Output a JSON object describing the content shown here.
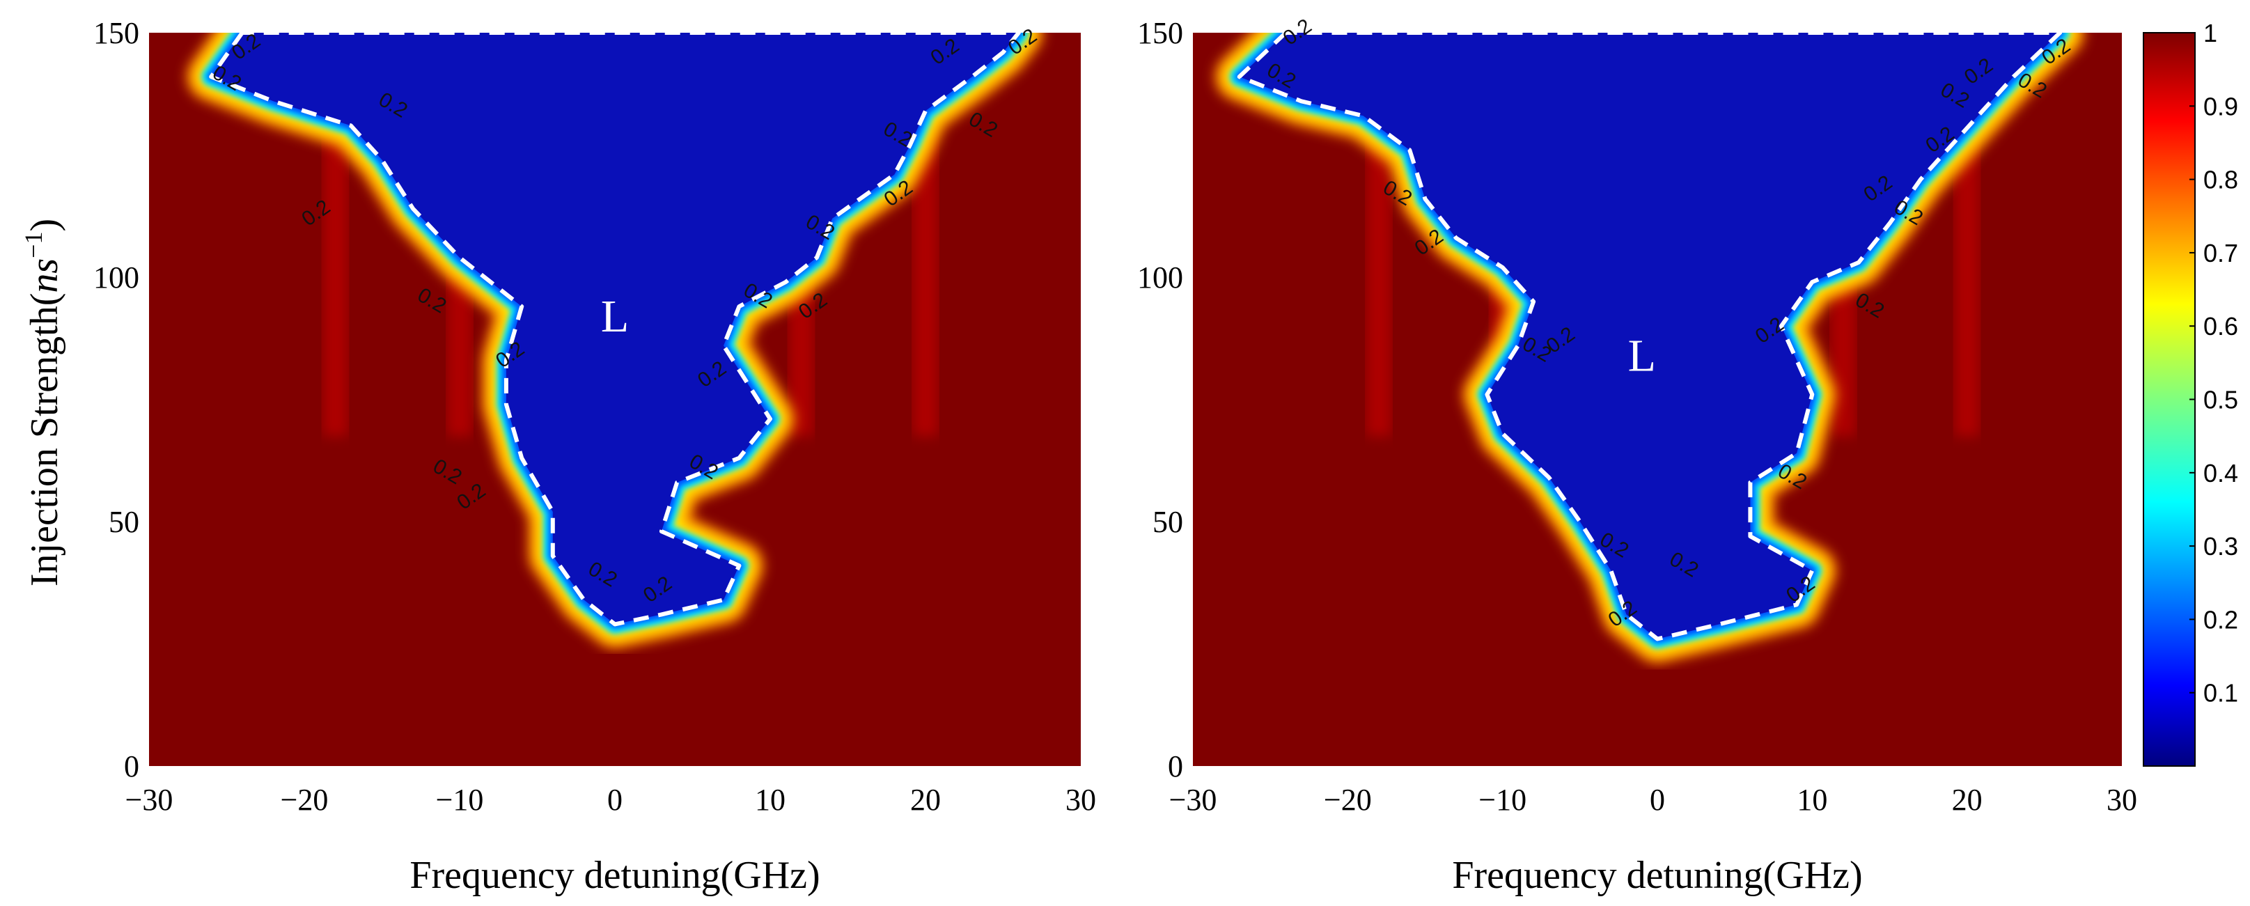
{
  "chart_data": [
    {
      "type": "heatmap",
      "panel": "left",
      "xlabel": "Frequency detuning(GHz)",
      "ylabel": "Injection Strength(",
      "ylabel_unit": "ns",
      "ylabel_exp": "−1",
      "ylabel_close": ")",
      "xlim": [
        -30,
        30
      ],
      "ylim": [
        0,
        150
      ],
      "x_ticks": [
        "-30",
        "-20",
        "-10",
        "0",
        "10",
        "20",
        "30"
      ],
      "y_ticks": [
        "0",
        "50",
        "100",
        "150"
      ],
      "region_label": "L",
      "region_label_pos": [
        0,
        92
      ],
      "contour_level": "0.2",
      "contour_labels": [
        {
          "x": -25.2,
          "y": 139.5
        },
        {
          "x": -23.5,
          "y": 146
        },
        {
          "x": -14.5,
          "y": 134
        },
        {
          "x": -19,
          "y": 112
        },
        {
          "x": -12,
          "y": 94
        },
        {
          "x": -6.5,
          "y": 83
        },
        {
          "x": -11,
          "y": 59
        },
        {
          "x": -9,
          "y": 54
        },
        {
          "x": -1,
          "y": 38
        },
        {
          "x": 3,
          "y": 35
        },
        {
          "x": 5.5,
          "y": 60
        },
        {
          "x": 6.5,
          "y": 79
        },
        {
          "x": 9,
          "y": 95
        },
        {
          "x": 13,
          "y": 93
        },
        {
          "x": 13,
          "y": 109
        },
        {
          "x": 18.5,
          "y": 116
        },
        {
          "x": 18,
          "y": 128
        },
        {
          "x": 21.5,
          "y": 145
        },
        {
          "x": 23.5,
          "y": 130
        },
        {
          "x": 26.5,
          "y": 147
        }
      ],
      "boundary_left": [
        [
          -24,
          150
        ],
        [
          -26,
          141
        ],
        [
          -22,
          136
        ],
        [
          -17,
          131
        ],
        [
          -15,
          124
        ],
        [
          -13,
          114
        ],
        [
          -10,
          104
        ],
        [
          -6,
          94
        ],
        [
          -7,
          83
        ],
        [
          -7,
          74
        ],
        [
          -6,
          63
        ],
        [
          -4,
          52
        ],
        [
          -4,
          43
        ],
        [
          -2,
          34
        ],
        [
          0,
          29
        ]
      ],
      "boundary_right": [
        [
          0,
          29
        ],
        [
          3,
          31
        ],
        [
          7,
          34
        ],
        [
          8,
          41
        ],
        [
          3,
          48
        ],
        [
          4,
          58
        ],
        [
          8,
          63
        ],
        [
          10,
          71
        ],
        [
          7,
          86
        ],
        [
          8,
          94
        ],
        [
          11,
          99
        ],
        [
          13,
          104
        ],
        [
          14,
          112
        ],
        [
          18,
          121
        ],
        [
          19,
          127
        ],
        [
          20,
          134
        ],
        [
          23,
          141
        ],
        [
          25,
          146
        ],
        [
          26,
          150
        ]
      ],
      "fringe_bands": [
        [
          -18,
          150
        ],
        [
          -10,
          150
        ],
        [
          -3,
          150
        ],
        [
          4,
          150
        ],
        [
          12,
          150
        ],
        [
          20,
          150
        ]
      ]
    },
    {
      "type": "heatmap",
      "panel": "right",
      "xlabel": "Frequency detuning(GHz)",
      "xlim": [
        -30,
        30
      ],
      "ylim": [
        0,
        150
      ],
      "x_ticks": [
        "-30",
        "-20",
        "-10",
        "0",
        "10",
        "20",
        "30"
      ],
      "y_ticks": [
        "0",
        "50",
        "100",
        "150"
      ],
      "region_label": "L",
      "region_label_pos": [
        -1,
        84
      ],
      "contour_level": "0.2",
      "contour_labels": [
        {
          "x": -24.5,
          "y": 140
        },
        {
          "x": -23,
          "y": 149
        },
        {
          "x": -17,
          "y": 116
        },
        {
          "x": -14.5,
          "y": 106
        },
        {
          "x": -8,
          "y": 84
        },
        {
          "x": -6,
          "y": 86
        },
        {
          "x": -3,
          "y": 44
        },
        {
          "x": -2,
          "y": 30
        },
        {
          "x": 1.5,
          "y": 40
        },
        {
          "x": 7.5,
          "y": 88
        },
        {
          "x": 8.5,
          "y": 58
        },
        {
          "x": 9.5,
          "y": 35
        },
        {
          "x": 13.5,
          "y": 93
        },
        {
          "x": 14.5,
          "y": 117
        },
        {
          "x": 16,
          "y": 112
        },
        {
          "x": 18.5,
          "y": 127
        },
        {
          "x": 19,
          "y": 136
        },
        {
          "x": 21,
          "y": 141
        },
        {
          "x": 24,
          "y": 138
        },
        {
          "x": 26,
          "y": 145
        }
      ],
      "boundary_left": [
        [
          -24,
          150
        ],
        [
          -27,
          141
        ],
        [
          -23,
          136
        ],
        [
          -19,
          133
        ],
        [
          -16,
          126
        ],
        [
          -15,
          116
        ],
        [
          -13,
          108
        ],
        [
          -10,
          102
        ],
        [
          -8,
          95
        ],
        [
          -9,
          86
        ],
        [
          -11,
          76
        ],
        [
          -10,
          68
        ],
        [
          -7,
          59
        ],
        [
          -5,
          50
        ],
        [
          -3,
          40
        ],
        [
          -2,
          31
        ],
        [
          0,
          26
        ]
      ],
      "boundary_right": [
        [
          0,
          26
        ],
        [
          4,
          29
        ],
        [
          9,
          33
        ],
        [
          10,
          40
        ],
        [
          6,
          47
        ],
        [
          6,
          58
        ],
        [
          9,
          64
        ],
        [
          10,
          76
        ],
        [
          8,
          90
        ],
        [
          10,
          99
        ],
        [
          13,
          103
        ],
        [
          15,
          111
        ],
        [
          17,
          120
        ],
        [
          19,
          127
        ],
        [
          21,
          134
        ],
        [
          23,
          141
        ],
        [
          26,
          150
        ]
      ],
      "fringe_bands": [
        [
          -18,
          150
        ],
        [
          -10,
          150
        ],
        [
          -3,
          150
        ],
        [
          4,
          150
        ],
        [
          12,
          150
        ],
        [
          20,
          150
        ]
      ]
    }
  ],
  "colorbar": {
    "range": [
      0,
      1
    ],
    "ticks": [
      "0.1",
      "0.2",
      "0.3",
      "0.4",
      "0.5",
      "0.6",
      "0.7",
      "0.8",
      "0.9",
      "1"
    ],
    "tick_values": [
      0.1,
      0.2,
      0.3,
      0.4,
      0.5,
      0.6,
      0.7,
      0.8,
      0.9,
      1.0
    ],
    "colormap": "jet",
    "colors": [
      "#00007f",
      "#0000ff",
      "#007fff",
      "#00ffff",
      "#7fff7f",
      "#ffff00",
      "#ff7f00",
      "#ff0000",
      "#7f0000"
    ]
  }
}
